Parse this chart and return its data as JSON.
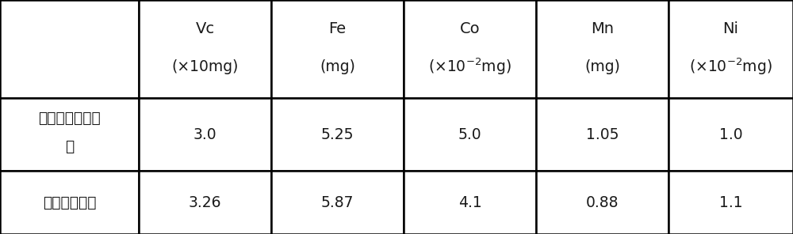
{
  "col_headers_line1": [
    "Vc",
    "Fe",
    "Co",
    "Mn",
    "Ni"
  ],
  "col_headers_line2": [
    "(×10mg)",
    "(mg)",
    "(×10⁻²mg)",
    "(mg)",
    "(×10⁻²mg)"
  ],
  "row_labels_line1": [
    "每人日摄入目标",
    "复合营养果汁"
  ],
  "row_labels_line2": [
    "量",
    ""
  ],
  "data": [
    [
      "3.0",
      "5.25",
      "5.0",
      "1.05",
      "1.0"
    ],
    [
      "3.26",
      "5.87",
      "4.1",
      "0.88",
      "1.1"
    ]
  ],
  "background_color": "#ffffff",
  "line_color": "#000000",
  "text_color": "#1a1a1a",
  "font_size": 13.5,
  "col_header_line2_vc": "(×10mg)",
  "col_header_line2_co": "(×10",
  "col_header_superscript_co": "-2",
  "col_header_line2_co_end": "mg)",
  "col_header_line2_ni": "(×10",
  "col_header_superscript_ni": "-2",
  "col_header_line2_ni_end": "mg)"
}
